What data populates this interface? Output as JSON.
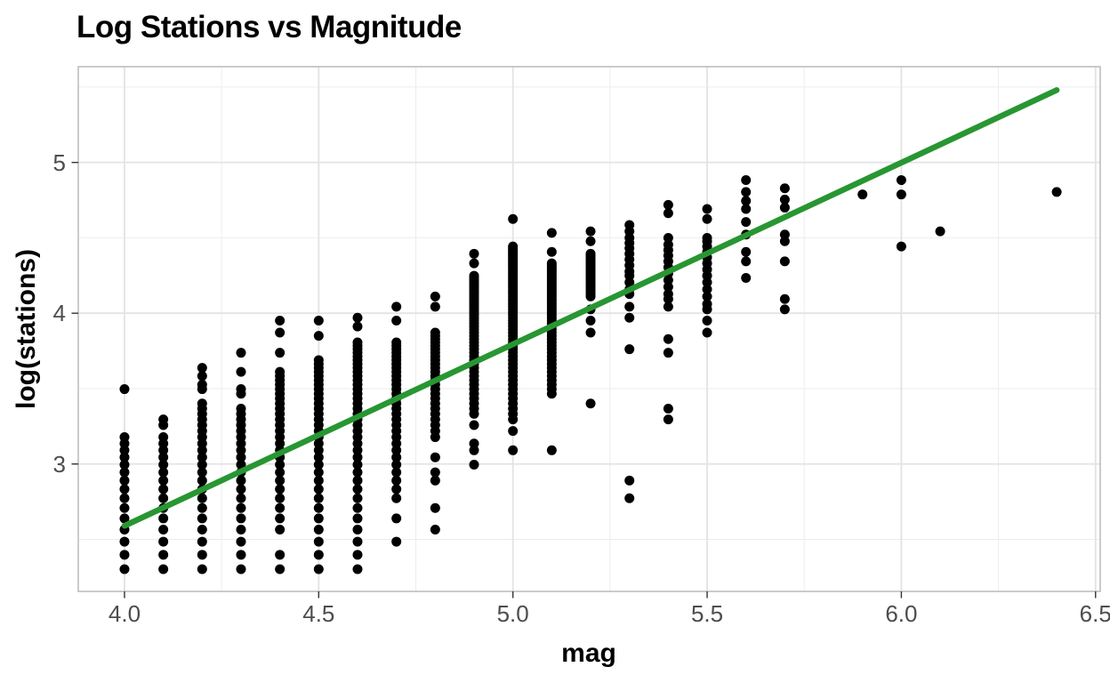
{
  "chart_data": {
    "type": "scatter",
    "title": "Log Stations vs Magnitude",
    "xlabel": "mag",
    "ylabel": "log(stations)",
    "legend": "none",
    "grid": {
      "major_color": "#e3e3e3",
      "minor_color": "#ededed",
      "panel_bg": "#ffffff",
      "panel_border": "#b5b5b5"
    },
    "axes": {
      "xlim": [
        3.881,
        6.512
      ],
      "ylim": [
        2.155,
        5.635
      ],
      "x_ticks": [
        {
          "value": 4.0,
          "label": "4.0"
        },
        {
          "value": 4.5,
          "label": "4.5"
        },
        {
          "value": 5.0,
          "label": "5.0"
        },
        {
          "value": 5.5,
          "label": "5.5"
        },
        {
          "value": 6.0,
          "label": "6.0"
        },
        {
          "value": 6.5,
          "label": "6.5"
        }
      ],
      "y_ticks": [
        {
          "value": 3,
          "label": "3"
        },
        {
          "value": 4,
          "label": "4"
        },
        {
          "value": 5,
          "label": "5"
        }
      ],
      "x_minor": [
        4.25,
        4.75,
        5.25,
        5.75,
        6.25
      ],
      "y_minor": [
        2.5,
        3.5,
        4.5,
        5.5
      ],
      "tick_color": "#333333"
    },
    "point_style": {
      "shape": "circle",
      "color": "#000000",
      "radius": 5.5
    },
    "y_is_natural_log_of_stations": true,
    "columns": [
      {
        "mag": 4.0,
        "stations": [
          {
            "from": 10,
            "to": 24
          },
          33
        ]
      },
      {
        "mag": 4.1,
        "stations": [
          {
            "from": 10,
            "to": 24
          },
          26,
          27
        ]
      },
      {
        "mag": 4.2,
        "stations": [
          {
            "from": 10,
            "to": 30
          },
          33,
          34,
          36,
          38
        ]
      },
      {
        "mag": 4.3,
        "stations": [
          {
            "from": 10,
            "to": 29
          },
          32,
          33,
          37,
          42
        ]
      },
      {
        "mag": 4.4,
        "stations": [
          10,
          11,
          {
            "from": 13,
            "to": 37
          },
          42,
          48,
          52
        ]
      },
      {
        "mag": 4.5,
        "stations": [
          {
            "from": 10,
            "to": 40
          },
          47,
          52
        ]
      },
      {
        "mag": 4.6,
        "stations": [
          {
            "from": 10,
            "to": 45
          },
          50,
          53
        ]
      },
      {
        "mag": 4.7,
        "stations": [
          12,
          14,
          {
            "from": 16,
            "to": 45
          },
          52,
          57
        ]
      },
      {
        "mag": 4.8,
        "stations": [
          13,
          15,
          18,
          19,
          21,
          {
            "from": 24,
            "to": 48
          },
          57,
          61
        ]
      },
      {
        "mag": 4.9,
        "stations": [
          20,
          22,
          23,
          26,
          {
            "from": 28,
            "to": 70
          },
          76,
          81
        ]
      },
      {
        "mag": 5.0,
        "stations": [
          22,
          25,
          {
            "from": 27,
            "to": 85
          },
          102
        ]
      },
      {
        "mag": 5.1,
        "stations": [
          22,
          {
            "from": 32,
            "to": 76
          },
          82,
          93
        ]
      },
      {
        "mag": 5.2,
        "stations": [
          30,
          48,
          52,
          56,
          {
            "from": 61,
            "to": 81
          },
          88,
          94
        ]
      },
      {
        "mag": 5.3,
        "stations": [
          16,
          18,
          43,
          53,
          57,
          62,
          64,
          67,
          70,
          72,
          75,
          78,
          81,
          84,
          87,
          90,
          94,
          98
        ]
      },
      {
        "mag": 5.4,
        "stations": [
          27,
          29,
          42,
          46,
          57,
          60,
          62,
          65,
          68,
          71,
          74,
          77,
          80,
          83,
          86,
          90,
          106,
          112
        ]
      },
      {
        "mag": 5.5,
        "stations": [
          48,
          52,
          56,
          58,
          61,
          64,
          67,
          70,
          73,
          76,
          79,
          82,
          85,
          88,
          90,
          102,
          109
        ]
      },
      {
        "mag": 5.6,
        "stations": [
          69,
          77,
          82,
          92,
          100,
          109,
          115,
          122,
          132
        ]
      },
      {
        "mag": 5.7,
        "stations": [
          56,
          60,
          77,
          88,
          92,
          110,
          116,
          125
        ]
      },
      {
        "mag": 5.9,
        "stations": [
          120
        ]
      },
      {
        "mag": 6.0,
        "stations": [
          85,
          120,
          132
        ]
      },
      {
        "mag": 6.1,
        "stations": [
          94
        ]
      },
      {
        "mag": 6.4,
        "stations": [
          122
        ]
      }
    ],
    "trend_line": {
      "kind": "linear_fit",
      "color": "#289632",
      "width": 6.5,
      "x1": 4.0,
      "y1": 2.59,
      "x2": 6.4,
      "y2": 5.48
    }
  }
}
